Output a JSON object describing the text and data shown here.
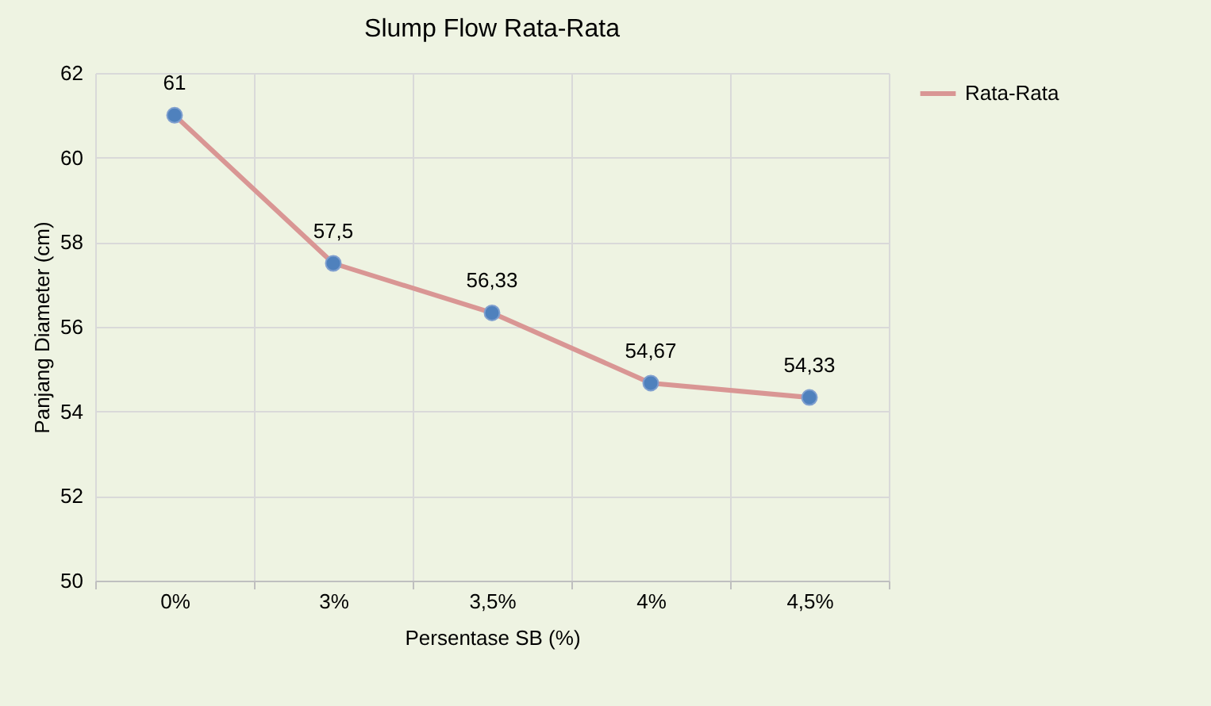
{
  "chart_data": {
    "type": "line",
    "title": "Slump Flow Rata-Rata",
    "xlabel": "Persentase SB (%)",
    "ylabel": "Panjang Diameter (cm)",
    "categories": [
      "0%",
      "3%",
      "3,5%",
      "4%",
      "4,5%"
    ],
    "series": [
      {
        "name": "Rata-Rata",
        "color": "#d99694",
        "values": [
          61,
          57.5,
          56.33,
          54.67,
          54.33
        ],
        "value_labels": [
          "61",
          "57,5",
          "56,33",
          "54,67",
          "54,33"
        ]
      }
    ],
    "ylim": [
      50,
      62
    ],
    "yticks": [
      50,
      52,
      54,
      56,
      58,
      60,
      62
    ],
    "grid": true,
    "legend": "right",
    "marker": "circle",
    "line_style": "solid"
  }
}
